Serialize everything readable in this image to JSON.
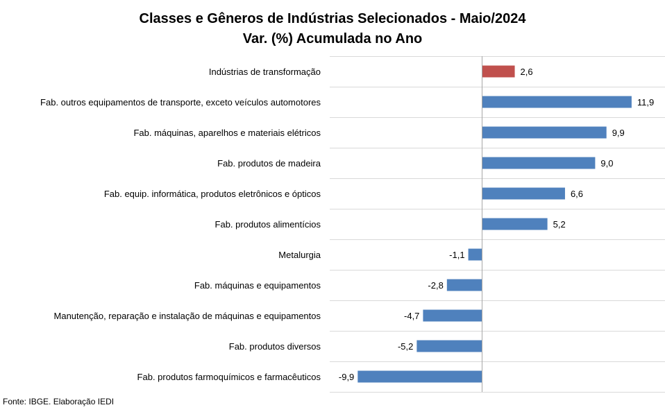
{
  "chart_data": {
    "type": "bar",
    "orientation": "horizontal",
    "title": "Classes e Gêneros de Indústrias Selecionados - Maio/2024",
    "subtitle": "Var. (%) Acumulada no Ano",
    "categories": [
      "Indústrias de transformação",
      "Fab. outros equipamentos de transporte, exceto veículos automotores",
      "Fab. máquinas, aparelhos e materiais elétricos",
      "Fab. produtos de madeira",
      "Fab. equip. informática, produtos eletrônicos e ópticos",
      "Fab. produtos alimentícios",
      "Metalurgia",
      "Fab. máquinas e equipamentos",
      "Manutenção, reparação e instalação de máquinas e equipamentos",
      "Fab. produtos diversos",
      "Fab. produtos farmoquímicos e farmacêuticos"
    ],
    "values": [
      2.6,
      11.9,
      9.9,
      9.0,
      6.6,
      5.2,
      -1.1,
      -2.8,
      -4.7,
      -5.2,
      -9.9
    ],
    "labels": [
      "2,6",
      "11,9",
      "9,9",
      "9,0",
      "6,6",
      "5,2",
      "-1,1",
      "-2,8",
      "-4,7",
      "-5,2",
      "-9,9"
    ],
    "highlight_index": 0,
    "colors": {
      "highlight": "#C0504D",
      "bar": "#4F81BD",
      "grid": "#D9D9D9",
      "axis": "#A6A6A6"
    },
    "legend": "none",
    "grid": true
  },
  "source": "Fonte: IBGE. Elaboração IEDI"
}
